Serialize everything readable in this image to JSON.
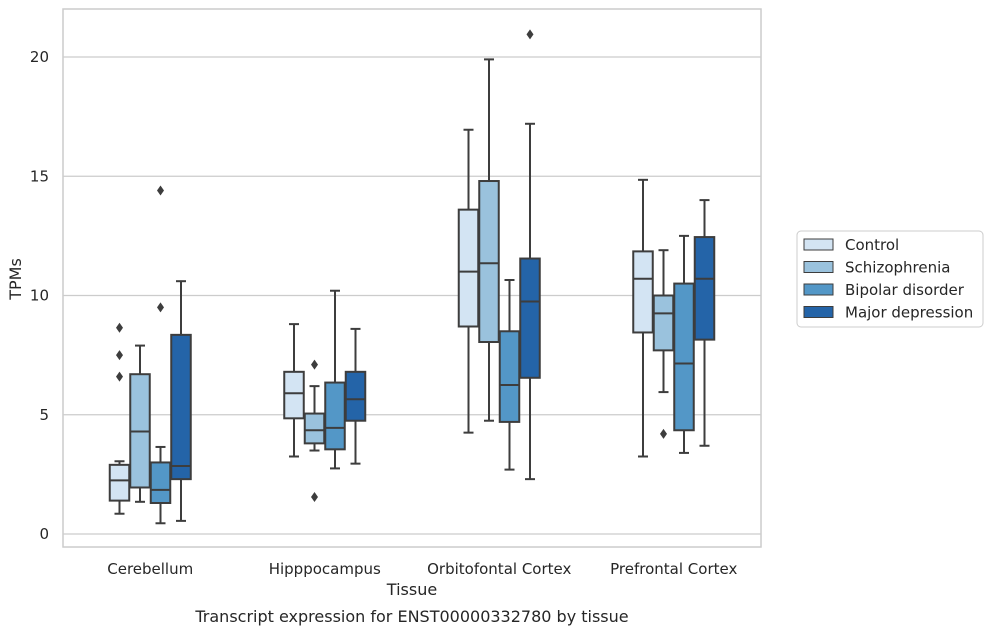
{
  "caption": "Transcript expression for ENST00000332780 by tissue",
  "chart_data": {
    "type": "box",
    "xlabel": "Tissue",
    "ylabel": "TPMs",
    "ylim": [
      -0.5,
      22
    ],
    "yticks": [
      0,
      5,
      10,
      15,
      20
    ],
    "grid": "horizontal",
    "legend_position": "right",
    "categories": [
      "Cerebellum",
      "Hipppocampus",
      "Orbitofontal Cortex",
      "Prefrontal Cortex"
    ],
    "series": [
      {
        "name": "Control",
        "color": "#d3e4f3",
        "boxes": [
          {
            "whisker_low": 0.85,
            "q1": 1.4,
            "median": 2.25,
            "q3": 2.9,
            "whisker_high": 3.05,
            "outliers": [
              6.6,
              7.5,
              8.65
            ]
          },
          {
            "whisker_low": 3.25,
            "q1": 4.85,
            "median": 5.9,
            "q3": 6.8,
            "whisker_high": 8.8,
            "outliers": []
          },
          {
            "whisker_low": 4.25,
            "q1": 8.7,
            "median": 11.0,
            "q3": 13.6,
            "whisker_high": 16.95,
            "outliers": []
          },
          {
            "whisker_low": 3.25,
            "q1": 8.45,
            "median": 10.7,
            "q3": 11.85,
            "whisker_high": 14.85,
            "outliers": []
          }
        ]
      },
      {
        "name": "Schizophrenia",
        "color": "#9ac2dd",
        "boxes": [
          {
            "whisker_low": 1.35,
            "q1": 1.95,
            "median": 4.3,
            "q3": 6.7,
            "whisker_high": 7.9,
            "outliers": []
          },
          {
            "whisker_low": 3.5,
            "q1": 3.8,
            "median": 4.35,
            "q3": 5.05,
            "whisker_high": 6.2,
            "outliers": [
              1.55,
              7.1
            ]
          },
          {
            "whisker_low": 4.75,
            "q1": 8.05,
            "median": 11.35,
            "q3": 14.8,
            "whisker_high": 19.9,
            "outliers": []
          },
          {
            "whisker_low": 5.95,
            "q1": 7.7,
            "median": 9.25,
            "q3": 10.0,
            "whisker_high": 11.9,
            "outliers": [
              4.2
            ]
          }
        ]
      },
      {
        "name": "Bipolar disorder",
        "color": "#5397c7",
        "boxes": [
          {
            "whisker_low": 0.45,
            "q1": 1.3,
            "median": 1.85,
            "q3": 3.0,
            "whisker_high": 3.65,
            "outliers": [
              9.5,
              14.4
            ]
          },
          {
            "whisker_low": 2.75,
            "q1": 3.55,
            "median": 4.45,
            "q3": 6.35,
            "whisker_high": 10.2,
            "outliers": []
          },
          {
            "whisker_low": 2.7,
            "q1": 4.7,
            "median": 6.25,
            "q3": 8.5,
            "whisker_high": 10.65,
            "outliers": []
          },
          {
            "whisker_low": 3.4,
            "q1": 4.35,
            "median": 7.15,
            "q3": 10.5,
            "whisker_high": 12.5,
            "outliers": []
          }
        ]
      },
      {
        "name": "Major depression",
        "color": "#2464a8",
        "boxes": [
          {
            "whisker_low": 0.55,
            "q1": 2.3,
            "median": 2.85,
            "q3": 8.35,
            "whisker_high": 10.6,
            "outliers": []
          },
          {
            "whisker_low": 2.95,
            "q1": 4.75,
            "median": 5.65,
            "q3": 6.8,
            "whisker_high": 8.6,
            "outliers": []
          },
          {
            "whisker_low": 2.3,
            "q1": 6.55,
            "median": 9.75,
            "q3": 11.55,
            "whisker_high": 17.2,
            "outliers": [
              20.95
            ]
          },
          {
            "whisker_low": 3.7,
            "q1": 8.15,
            "median": 10.7,
            "q3": 12.45,
            "whisker_high": 14.0,
            "outliers": []
          }
        ]
      }
    ]
  }
}
